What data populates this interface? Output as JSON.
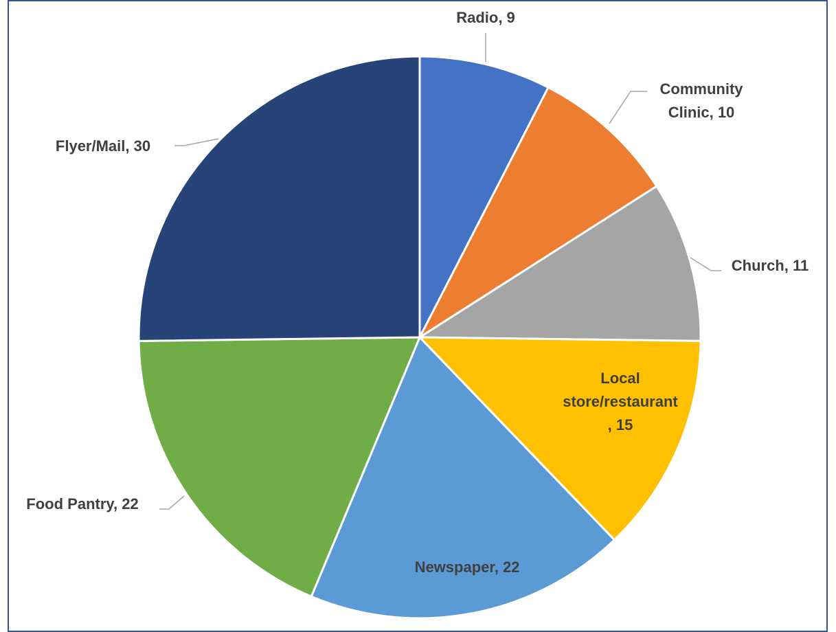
{
  "chart_data": {
    "type": "pie",
    "title": "",
    "start_angle_deg": 0,
    "direction": "clockwise",
    "label_format": "{name}, {value}",
    "slices": [
      {
        "name": "Radio",
        "value": 9,
        "color": "#4472c4",
        "label_lines": [
          "Radio, 9"
        ]
      },
      {
        "name": "Community Clinic",
        "value": 10,
        "color": "#ed7d31",
        "label_lines": [
          "Community",
          "Clinic, 10"
        ]
      },
      {
        "name": "Church",
        "value": 11,
        "color": "#a5a5a5",
        "label_lines": [
          "Church, 11"
        ]
      },
      {
        "name": "Local store/restaurant",
        "value": 15,
        "color": "#ffc000",
        "label_lines": [
          "Local",
          "store/restaurant",
          ", 15"
        ]
      },
      {
        "name": "Newspaper",
        "value": 22,
        "color": "#5b9bd5",
        "label_lines": [
          "Newspaper, 22"
        ]
      },
      {
        "name": "Food Pantry",
        "value": 22,
        "color": "#70ad47",
        "label_lines": [
          "Food Pantry, 22"
        ]
      },
      {
        "name": "Flyer/Mail",
        "value": 30,
        "color": "#264478",
        "label_lines": [
          "Flyer/Mail, 30"
        ]
      }
    ],
    "label_color": "#404040",
    "leader_line_color": "#a6a6a6",
    "slice_border_color": "#ffffff",
    "frame_color": "#2f5597"
  }
}
